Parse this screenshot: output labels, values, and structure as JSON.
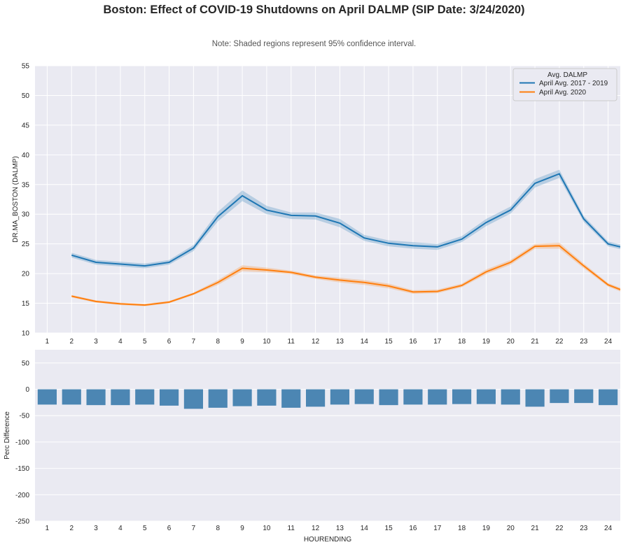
{
  "title": "Boston: Effect of COVID-19 Shutdowns on April DALMP (SIP Date: 3/24/2020)",
  "subtitle": "Note: Shaded regions represent 95% confidence interval.",
  "colors": {
    "background": "#eaeaf2",
    "grid": "#ffffff",
    "series_2017_2019": "#1f77b4",
    "series_2020": "#ff7f0e",
    "bars": "#4c86b3"
  },
  "chart_data": [
    {
      "type": "line",
      "legend_title": "Avg. DALMP",
      "legend_position": "top-right",
      "ylabel": "DR.MA_BOSTON (DALMP)",
      "xlabel": "",
      "ylim": [
        10,
        55
      ],
      "xlim": [
        0.5,
        24.5
      ],
      "yticks": [
        10,
        15,
        20,
        25,
        30,
        35,
        40,
        45,
        50,
        55
      ],
      "xticks": [
        1,
        2,
        3,
        4,
        5,
        6,
        7,
        8,
        9,
        10,
        11,
        12,
        13,
        14,
        15,
        16,
        17,
        18,
        19,
        20,
        21,
        22,
        23,
        24
      ],
      "grid": true,
      "series": [
        {
          "name": "April Avg. 2017 - 2019",
          "x": [
            2,
            3,
            4,
            5,
            6,
            7,
            8,
            9,
            10,
            11,
            12,
            13,
            14,
            15,
            16,
            17,
            18,
            19,
            20,
            21,
            22,
            23,
            24,
            24.5
          ],
          "values": [
            23.1,
            21.9,
            21.6,
            21.3,
            21.9,
            24.3,
            29.6,
            33.1,
            30.7,
            29.8,
            29.7,
            28.5,
            26.0,
            25.1,
            24.7,
            24.5,
            25.8,
            28.6,
            30.7,
            35.2,
            36.8,
            29.2,
            25.0,
            24.5
          ],
          "ci_low": [
            22.7,
            21.5,
            21.2,
            20.9,
            21.5,
            23.8,
            28.8,
            32.2,
            30.0,
            29.2,
            29.1,
            27.8,
            25.5,
            24.6,
            24.2,
            24.0,
            25.3,
            28.0,
            30.1,
            34.5,
            36.1,
            28.7,
            24.6,
            24.1
          ],
          "ci_high": [
            23.5,
            22.3,
            22.0,
            21.7,
            22.3,
            24.8,
            30.4,
            34.0,
            31.4,
            30.3,
            30.3,
            29.2,
            26.5,
            25.6,
            25.3,
            25.0,
            26.3,
            29.2,
            31.3,
            35.9,
            37.5,
            29.7,
            25.4,
            24.9
          ]
        },
        {
          "name": "April Avg. 2020",
          "x": [
            2,
            3,
            4,
            5,
            6,
            7,
            8,
            9,
            10,
            11,
            12,
            13,
            14,
            15,
            16,
            17,
            18,
            19,
            20,
            21,
            22,
            23,
            24,
            24.5
          ],
          "values": [
            16.2,
            15.3,
            14.9,
            14.7,
            15.2,
            16.6,
            18.5,
            20.9,
            20.6,
            20.2,
            19.4,
            18.9,
            18.5,
            17.9,
            16.9,
            17.0,
            18.0,
            20.3,
            21.9,
            24.6,
            24.7,
            21.3,
            18.1,
            17.3
          ],
          "ci_low": [
            16.0,
            15.1,
            14.7,
            14.5,
            15.0,
            16.4,
            18.1,
            20.4,
            20.2,
            19.9,
            19.1,
            18.5,
            18.1,
            17.5,
            16.6,
            16.7,
            17.7,
            19.9,
            21.5,
            24.2,
            24.2,
            20.9,
            17.8,
            17.0
          ],
          "ci_high": [
            16.4,
            15.5,
            15.1,
            14.9,
            15.4,
            16.8,
            18.9,
            21.4,
            21.0,
            20.5,
            19.7,
            19.3,
            18.9,
            18.3,
            17.2,
            17.3,
            18.3,
            20.7,
            22.3,
            25.0,
            25.2,
            21.7,
            18.4,
            17.6
          ]
        }
      ]
    },
    {
      "type": "bar",
      "xlabel": "HOURENDING",
      "ylabel": "Perc Difference",
      "ylim": [
        -250,
        75
      ],
      "yticks": [
        -250,
        -200,
        -150,
        -100,
        -50,
        0,
        50
      ],
      "grid": true,
      "categories": [
        "1",
        "2",
        "3",
        "4",
        "5",
        "6",
        "7",
        "8",
        "9",
        "10",
        "11",
        "12",
        "13",
        "14",
        "15",
        "16",
        "17",
        "18",
        "19",
        "20",
        "21",
        "22",
        "23",
        "24"
      ],
      "values": [
        -29,
        -29,
        -30,
        -30,
        -29,
        -31,
        -37,
        -35,
        -32,
        -31,
        -35,
        -33,
        -29,
        -28,
        -30,
        -29,
        -29,
        -28,
        -28,
        -29,
        -33,
        -26,
        -26,
        -30
      ]
    }
  ]
}
